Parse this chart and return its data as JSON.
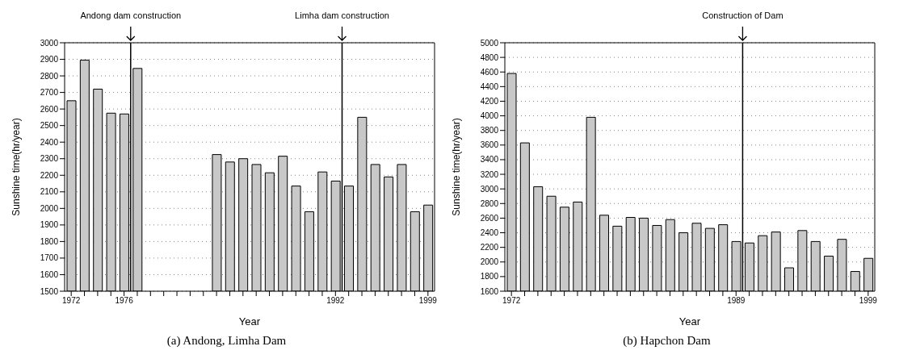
{
  "chart_data": [
    {
      "type": "bar",
      "subtitle": "(a) Andong, Limha Dam",
      "xlabel": "Year",
      "ylabel": "Sunshine time(hr/year)",
      "x": [
        1972,
        1973,
        1974,
        1975,
        1976,
        1977,
        1978,
        1979,
        1980,
        1981,
        1982,
        1983,
        1984,
        1985,
        1986,
        1987,
        1988,
        1989,
        1990,
        1991,
        1992,
        1993,
        1994,
        1995,
        1996,
        1997,
        1998,
        1999
      ],
      "series": [
        {
          "color": "#c8c8c8",
          "values": [
            2650,
            2895,
            2720,
            2575,
            2570,
            2845,
            null,
            null,
            null,
            null,
            null,
            2325,
            2280,
            2300,
            2265,
            2215,
            2315,
            2135,
            1980,
            2220,
            2165,
            2135,
            2550,
            2265,
            2190,
            2265,
            1980,
            2020
          ]
        }
      ],
      "xlim": [
        1971.5,
        1999.5
      ],
      "xticks": [
        1972,
        {
          "value": 1973,
          "label": null
        },
        {
          "value": 1974,
          "label": null
        },
        {
          "value": 1975,
          "label": null
        },
        1976,
        {
          "value": 1977,
          "label": null
        },
        {
          "value": 1978,
          "label": null
        },
        {
          "value": 1979,
          "label": null
        },
        {
          "value": 1980,
          "label": null
        },
        {
          "value": 1981,
          "label": null
        },
        {
          "value": 1982,
          "label": null
        },
        {
          "value": 1983,
          "label": null
        },
        {
          "value": 1984,
          "label": null
        },
        {
          "value": 1985,
          "label": null
        },
        {
          "value": 1986,
          "label": null
        },
        {
          "value": 1987,
          "label": null
        },
        {
          "value": 1988,
          "label": null
        },
        {
          "value": 1989,
          "label": null
        },
        {
          "value": 1990,
          "label": null
        },
        {
          "value": 1991,
          "label": null
        },
        1992,
        {
          "value": 1993,
          "label": null
        },
        {
          "value": 1994,
          "label": null
        },
        {
          "value": 1995,
          "label": null
        },
        {
          "value": 1996,
          "label": null
        },
        {
          "value": 1997,
          "label": null
        },
        {
          "value": 1998,
          "label": null
        },
        1999
      ],
      "ylim": [
        1500,
        3000
      ],
      "yticks": [
        1500,
        1600,
        1700,
        1800,
        1900,
        2000,
        2100,
        2200,
        2300,
        2400,
        2500,
        2600,
        2700,
        2800,
        2900,
        3000
      ],
      "grid": "y",
      "ref_lines": [
        {
          "axis": "x",
          "value": 1976.5,
          "label": "Andong dam construction",
          "color": "#000000"
        },
        {
          "axis": "x",
          "value": 1992.5,
          "label": "Limha dam construction",
          "color": "#000000"
        }
      ]
    },
    {
      "type": "bar",
      "subtitle": "(b) Hapchon Dam",
      "xlabel": "Year",
      "ylabel": "Sunshine time(hr/year)",
      "x": [
        1972,
        1973,
        1974,
        1975,
        1976,
        1977,
        1978,
        1979,
        1980,
        1981,
        1982,
        1983,
        1984,
        1985,
        1986,
        1987,
        1988,
        1989,
        1990,
        1991,
        1992,
        1993,
        1994,
        1995,
        1996,
        1997,
        1998,
        1999
      ],
      "series": [
        {
          "color": "#c8c8c8",
          "values": [
            4580,
            3630,
            3030,
            2900,
            2750,
            2820,
            3980,
            2640,
            2490,
            2610,
            2600,
            2500,
            2580,
            2400,
            2530,
            2460,
            2510,
            2280,
            2260,
            2360,
            2410,
            1920,
            2430,
            2280,
            2080,
            2310,
            1870,
            2050
          ]
        }
      ],
      "xlim": [
        1971.5,
        1999.5
      ],
      "xticks": [
        1972,
        {
          "value": 1973,
          "label": null
        },
        {
          "value": 1974,
          "label": null
        },
        {
          "value": 1975,
          "label": null
        },
        {
          "value": 1976,
          "label": null
        },
        {
          "value": 1977,
          "label": null
        },
        {
          "value": 1978,
          "label": null
        },
        {
          "value": 1979,
          "label": null
        },
        {
          "value": 1980,
          "label": null
        },
        {
          "value": 1981,
          "label": null
        },
        {
          "value": 1982,
          "label": null
        },
        {
          "value": 1983,
          "label": null
        },
        {
          "value": 1984,
          "label": null
        },
        {
          "value": 1985,
          "label": null
        },
        {
          "value": 1986,
          "label": null
        },
        {
          "value": 1987,
          "label": null
        },
        {
          "value": 1988,
          "label": null
        },
        1989,
        {
          "value": 1990,
          "label": null
        },
        {
          "value": 1991,
          "label": null
        },
        {
          "value": 1992,
          "label": null
        },
        {
          "value": 1993,
          "label": null
        },
        {
          "value": 1994,
          "label": null
        },
        {
          "value": 1995,
          "label": null
        },
        {
          "value": 1996,
          "label": null
        },
        {
          "value": 1997,
          "label": null
        },
        {
          "value": 1998,
          "label": null
        },
        1999
      ],
      "ylim": [
        1600,
        5000
      ],
      "yticks": [
        1600,
        1800,
        2000,
        2200,
        2400,
        2600,
        2800,
        3000,
        3200,
        3400,
        3600,
        3800,
        4000,
        4200,
        4400,
        4600,
        4800,
        5000
      ],
      "grid": "y",
      "ref_lines": [
        {
          "axis": "x",
          "value": 1989.5,
          "label": "Construction of Dam",
          "color": "#000000"
        }
      ]
    }
  ]
}
